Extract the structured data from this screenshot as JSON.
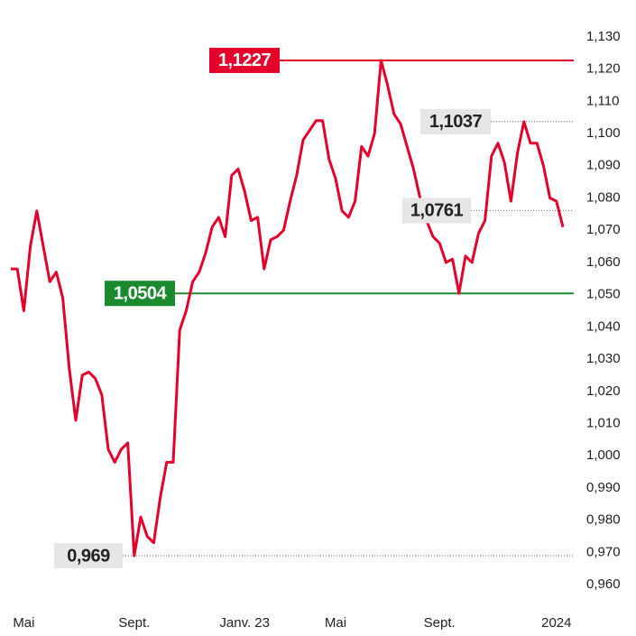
{
  "chart_data": {
    "type": "line",
    "categories": [
      null,
      null,
      "Mai",
      null,
      null,
      null,
      null,
      null,
      null,
      null,
      null,
      null,
      null,
      null,
      null,
      null,
      null,
      null,
      null,
      "Sept.",
      null,
      null,
      null,
      null,
      null,
      null,
      null,
      null,
      null,
      null,
      null,
      null,
      null,
      null,
      null,
      null,
      "Janv. 23",
      null,
      null,
      null,
      null,
      null,
      null,
      null,
      null,
      null,
      null,
      null,
      null,
      null,
      "Mai",
      null,
      null,
      null,
      null,
      null,
      null,
      null,
      null,
      null,
      null,
      null,
      null,
      null,
      null,
      null,
      "Sept.",
      null,
      null,
      null,
      null,
      null,
      null,
      null,
      null,
      null,
      null,
      null,
      null,
      null,
      null,
      null,
      null,
      null,
      "2024",
      null
    ],
    "values": [
      1.058,
      1.058,
      1.045,
      1.065,
      1.076,
      1.065,
      1.054,
      1.057,
      1.049,
      1.027,
      1.011,
      1.025,
      1.026,
      1.024,
      1.019,
      1.002,
      0.998,
      1.002,
      1.004,
      0.969,
      0.981,
      0.975,
      0.973,
      0.987,
      0.998,
      0.998,
      1.039,
      1.045,
      1.054,
      1.057,
      1.063,
      1.071,
      1.074,
      1.068,
      1.087,
      1.089,
      1.082,
      1.073,
      1.074,
      1.058,
      1.067,
      1.068,
      1.07,
      1.079,
      1.087,
      1.098,
      1.101,
      1.104,
      1.104,
      1.092,
      1.086,
      1.076,
      1.074,
      1.079,
      1.096,
      1.093,
      1.1,
      1.1227,
      1.115,
      1.106,
      1.103,
      1.096,
      1.089,
      1.08,
      1.073,
      1.068,
      1.066,
      1.06,
      1.061,
      1.0504,
      1.062,
      1.06,
      1.069,
      1.073,
      1.093,
      1.097,
      1.091,
      1.079,
      1.094,
      1.1037,
      1.097,
      1.097,
      1.09,
      1.08,
      1.079,
      1.071
    ],
    "color": "#e4002b",
    "ylim": [
      0.955,
      1.135
    ],
    "yticks": [
      {
        "value": 0.96,
        "label": "0,960"
      },
      {
        "value": 0.97,
        "label": "0,970"
      },
      {
        "value": 0.98,
        "label": "0,980"
      },
      {
        "value": 0.99,
        "label": "0,990"
      },
      {
        "value": 1.0,
        "label": "1,000"
      },
      {
        "value": 1.01,
        "label": "1,010"
      },
      {
        "value": 1.02,
        "label": "1,020"
      },
      {
        "value": 1.03,
        "label": "1,030"
      },
      {
        "value": 1.04,
        "label": "1,040"
      },
      {
        "value": 1.05,
        "label": "1,050"
      },
      {
        "value": 1.06,
        "label": "1,060"
      },
      {
        "value": 1.07,
        "label": "1,070"
      },
      {
        "value": 1.08,
        "label": "1,080"
      },
      {
        "value": 1.09,
        "label": "1,090"
      },
      {
        "value": 1.1,
        "label": "1,100"
      },
      {
        "value": 1.11,
        "label": "1,110"
      },
      {
        "value": 1.12,
        "label": "1,120"
      },
      {
        "value": 1.13,
        "label": "1,130"
      }
    ],
    "annotations": [
      {
        "value": 1.1227,
        "label": "1,1227",
        "color": "#e4002b",
        "style": "solid"
      },
      {
        "value": 1.0504,
        "label": "1,0504",
        "color": "#1a8a2e",
        "style": "solid"
      },
      {
        "value": 1.1037,
        "label": "1,1037",
        "color": "#555555",
        "style": "dotted"
      },
      {
        "value": 1.0761,
        "label": "1,0761",
        "color": "#555555",
        "style": "dotted"
      },
      {
        "value": 0.969,
        "label": "0,969",
        "color": "#555555",
        "style": "dotted"
      }
    ]
  }
}
